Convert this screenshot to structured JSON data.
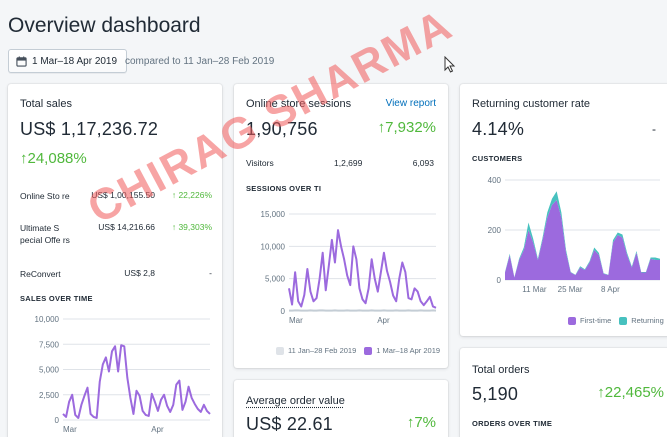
{
  "page": {
    "title": "Overview dashboard"
  },
  "date_range": {
    "label": "1 Mar–18 Apr 2019",
    "compare": "compared to 11 Jan–28 Feb 2019"
  },
  "total_sales": {
    "title": "Total sales",
    "value": "US$ 1,17,236.72",
    "change": "↑24,088%",
    "rows": [
      {
        "name": "Online Sto re",
        "value": "US$ 1,00,155.50",
        "change": "↑ 22,226%"
      },
      {
        "name": "Ultimate S pecial Offe rs",
        "value": "US$ 14,216.66",
        "change": "↑ 39,303%"
      },
      {
        "name": "ReConvert",
        "value": "US$ 2,8",
        "change": "-"
      }
    ],
    "chart_title": "SALES OVER TIME"
  },
  "sessions": {
    "title": "Online store sessions",
    "link": "View report",
    "value": "1,90,756",
    "change": "↑7,932%",
    "visitors_label": "Visitors",
    "visitors_value": "1,2,699",
    "visitors_change": "6,093",
    "chart_title": "SESSIONS OVER TI",
    "legend_prev": "11 Jan–28 Feb 2019",
    "legend_curr": "1 Mar–18 Apr 2019"
  },
  "returning": {
    "title": "Returning customer rate",
    "value": "4.14%",
    "dash": "-",
    "chart_title": "CUSTOMERS",
    "legend_first": "First-time",
    "legend_returning": "Returning"
  },
  "avg_order": {
    "title": "Average order value",
    "value": "US$ 22.61",
    "change": "↑7%"
  },
  "orders": {
    "title": "Total orders",
    "value": "5,190",
    "change": "↑22,465%",
    "chart_title": "ORDERS OVER TIME"
  },
  "watermark": "CHIRAG SHARMA",
  "colors": {
    "primary_line": "#9c6ade",
    "secondary_line": "#c4cdd5",
    "returning": "#47c1bf",
    "positive": "#50b83c",
    "link": "#006fbb"
  },
  "chart_data": [
    {
      "type": "line",
      "title": "SALES OVER TIME",
      "x_ticks": [
        "Mar",
        "Apr"
      ],
      "y_ticks": [
        "0",
        "2,500",
        "5,000",
        "7,500",
        "10,000"
      ],
      "ylim": [
        0,
        10000
      ],
      "series": [
        {
          "values": [
            600,
            300,
            1800,
            2500,
            500,
            200,
            1500,
            2400,
            3200,
            600,
            300,
            200,
            3800,
            5500,
            6200,
            4800,
            6800,
            7300,
            4800,
            7400,
            7300,
            4200,
            2200,
            600,
            2900,
            2400,
            900,
            500,
            400,
            2600,
            1800,
            900,
            2000,
            2500,
            1400,
            800,
            1500,
            3500,
            3900,
            1000,
            1800,
            3300,
            2200,
            1600,
            1100,
            800,
            1500,
            900,
            600
          ]
        }
      ]
    },
    {
      "type": "line",
      "title": "SESSIONS OVER TI",
      "x_ticks": [
        "Mar",
        "Apr"
      ],
      "y_ticks": [
        "0",
        "5,000",
        "10,000",
        "15,000"
      ],
      "ylim": [
        0,
        15000
      ],
      "series": [
        {
          "name": "11 Jan–28 Feb 2019",
          "values": [
            50,
            50,
            100,
            100,
            50,
            50,
            50,
            100,
            50,
            50,
            100,
            100,
            50,
            50,
            50,
            100,
            50,
            50,
            50,
            100,
            50,
            50,
            50,
            100,
            50,
            50,
            50,
            100,
            50,
            50,
            50,
            100,
            50,
            50,
            50,
            100,
            50,
            50,
            50,
            100,
            50,
            50,
            50,
            100,
            50,
            50,
            50,
            100,
            50
          ]
        },
        {
          "name": "1 Mar–18 Apr 2019",
          "values": [
            3500,
            1000,
            6000,
            1500,
            700,
            2500,
            6500,
            3000,
            1500,
            2000,
            5000,
            9000,
            3200,
            7000,
            11000,
            7500,
            12500,
            10000,
            8000,
            5500,
            4000,
            10000,
            8000,
            3500,
            1800,
            1200,
            3500,
            8000,
            5000,
            3000,
            6000,
            9000,
            6200,
            4500,
            2400,
            1500,
            5000,
            7500,
            6000,
            2000,
            1800,
            3500,
            3000,
            1500,
            900,
            1500,
            2200,
            700,
            500
          ]
        }
      ]
    },
    {
      "type": "area",
      "title": "CUSTOMERS",
      "x_ticks": [
        "11 Mar",
        "25 Mar",
        "8 Apr"
      ],
      "y_ticks": [
        "0",
        "200",
        "400"
      ],
      "ylim": [
        0,
        400
      ],
      "series": [
        {
          "name": "First-time",
          "values": [
            30,
            100,
            10,
            80,
            120,
            200,
            150,
            80,
            160,
            250,
            300,
            320,
            250,
            110,
            30,
            20,
            50,
            40,
            70,
            120,
            100,
            25,
            20,
            150,
            180,
            170,
            100,
            50,
            110,
            30,
            30,
            85,
            80,
            80
          ]
        },
        {
          "name": "Returning",
          "values": [
            2,
            5,
            1,
            5,
            10,
            30,
            15,
            5,
            10,
            20,
            25,
            35,
            20,
            10,
            2,
            1,
            5,
            3,
            5,
            10,
            8,
            2,
            1,
            10,
            10,
            12,
            8,
            4,
            6,
            2,
            2,
            5,
            10,
            5
          ]
        }
      ]
    }
  ]
}
